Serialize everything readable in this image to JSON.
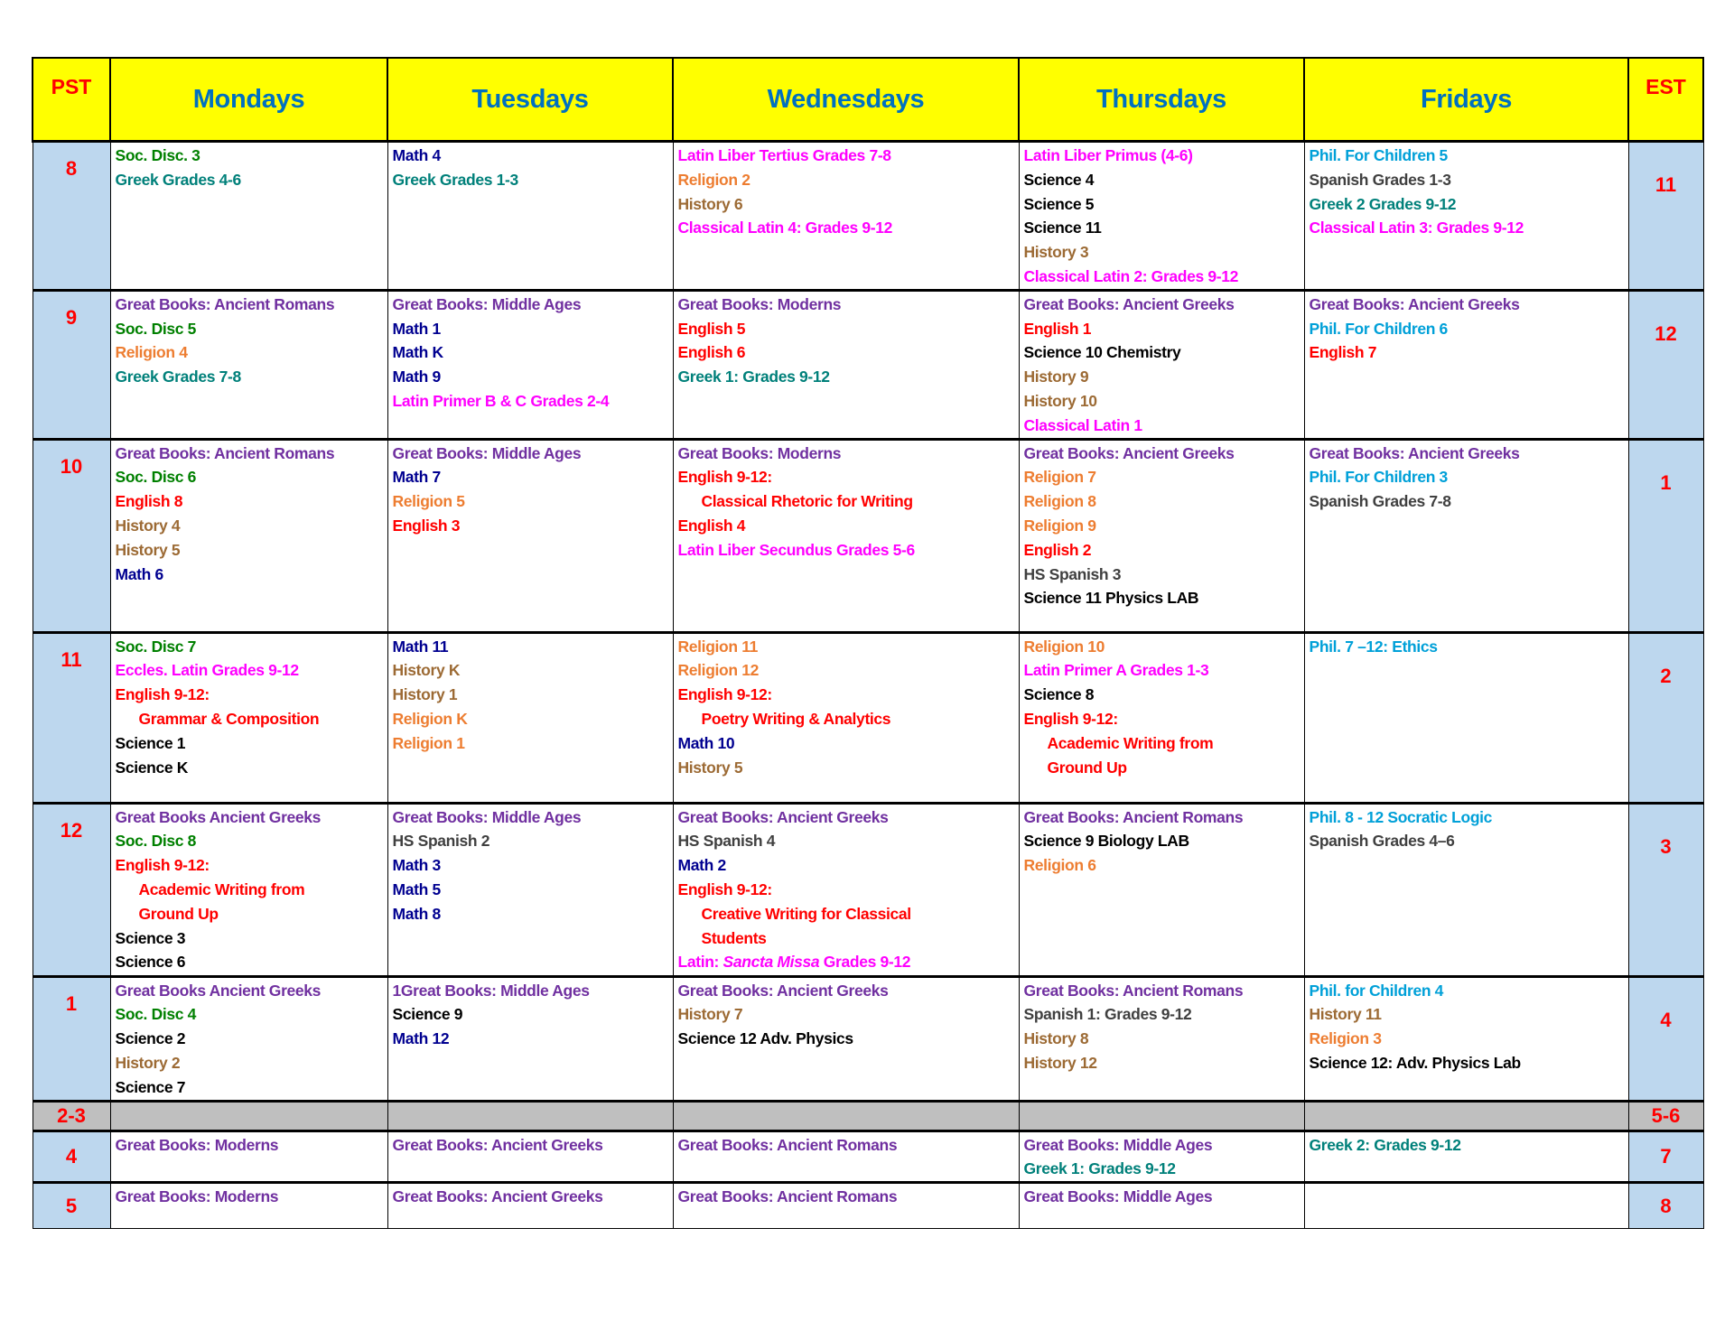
{
  "colors": {
    "header": "#0070c0",
    "time": "#ff0000",
    "time_bg": "#bdd7ee",
    "header_bg": "#ffff00",
    "break_bg": "#bfbfbf",
    "soc": "#008000",
    "greek": "#00807a",
    "math": "#000090",
    "books": "#7030a0",
    "religion": "#ed7d31",
    "history": "#9c6a34",
    "latin": "#ff00ff",
    "english": "#ff0000",
    "science": "#000000",
    "spanish": "#404040",
    "phil": "#00a0d8"
  },
  "header": {
    "pst": "PST",
    "est": "EST",
    "days": [
      "Mondays",
      "Tuesdays",
      "Wednesdays",
      "Thursdays",
      "Fridays"
    ]
  },
  "rows": [
    {
      "pst": "8",
      "est": "11",
      "cells": [
        [
          {
            "t": "Soc. Disc. 3",
            "c": "soc"
          },
          {
            "t": "Greek Grades 4-6",
            "c": "greek"
          }
        ],
        [
          {
            "t": "Math 4",
            "c": "math"
          },
          {
            "t": "Greek Grades 1-3",
            "c": "greek"
          }
        ],
        [
          {
            "t": "Latin Liber Tertius Grades 7-8",
            "c": "latin"
          },
          {
            "t": "Religion 2",
            "c": "religion"
          },
          {
            "t": "History 6",
            "c": "history"
          },
          {
            "t": "Classical Latin 4: Grades 9-12",
            "c": "latin"
          }
        ],
        [
          {
            "t": "Latin Liber Primus (4-6)",
            "c": "latin"
          },
          {
            "t": "Science 4",
            "c": "science"
          },
          {
            "t": "Science 5",
            "c": "science"
          },
          {
            "t": "Science 11",
            "c": "science"
          },
          {
            "t": "History 3",
            "c": "history"
          },
          {
            "t": "Classical Latin 2: Grades 9-12",
            "c": "latin"
          }
        ],
        [
          {
            "t": "Phil. For Children 5",
            "c": "phil"
          },
          {
            "t": "Spanish Grades 1-3",
            "c": "spanish"
          },
          {
            "t": "Greek 2 Grades 9-12",
            "c": "greek"
          },
          {
            "t": "Classical Latin 3: Grades 9-12",
            "c": "latin"
          }
        ]
      ]
    },
    {
      "pst": "9",
      "est": "12",
      "cells": [
        [
          {
            "t": "Great Books: Ancient Romans",
            "c": "books"
          },
          {
            "t": "Soc. Disc 5",
            "c": "soc"
          },
          {
            "t": "Religion 4",
            "c": "religion"
          },
          {
            "t": "Greek Grades 7-8",
            "c": "greek"
          }
        ],
        [
          {
            "t": "Great Books: Middle Ages",
            "c": "books"
          },
          {
            "t": "Math 1",
            "c": "math"
          },
          {
            "t": "Math K",
            "c": "math"
          },
          {
            "t": "Math 9",
            "c": "math"
          },
          {
            "t": "Latin Primer B & C Grades 2-4",
            "c": "latin"
          }
        ],
        [
          {
            "t": "Great Books: Moderns",
            "c": "books"
          },
          {
            "t": "English 5",
            "c": "english"
          },
          {
            "t": "English 6",
            "c": "english"
          },
          {
            "t": "Greek 1: Grades 9-12",
            "c": "greek"
          }
        ],
        [
          {
            "t": "Great Books: Ancient Greeks",
            "c": "books"
          },
          {
            "t": "English 1",
            "c": "english"
          },
          {
            "t": "Science 10 Chemistry",
            "c": "science"
          },
          {
            "t": "History 9",
            "c": "history"
          },
          {
            "t": "History 10",
            "c": "history"
          },
          {
            "t": "Classical Latin 1",
            "c": "latin"
          }
        ],
        [
          {
            "t": "Great Books: Ancient Greeks",
            "c": "books"
          },
          {
            "t": "Phil. For Children 6",
            "c": "phil"
          },
          {
            "t": "English 7",
            "c": "english"
          }
        ]
      ]
    },
    {
      "pst": "10",
      "est": "1",
      "cells": [
        [
          {
            "t": "Great Books: Ancient Romans",
            "c": "books"
          },
          {
            "t": "Soc. Disc 6",
            "c": "soc"
          },
          {
            "t": "English 8",
            "c": "english"
          },
          {
            "t": "History 4",
            "c": "history"
          },
          {
            "t": "History 5",
            "c": "history"
          },
          {
            "t": "Math 6",
            "c": "math"
          }
        ],
        [
          {
            "t": "Great Books: Middle Ages",
            "c": "books"
          },
          {
            "t": "Math 7",
            "c": "math"
          },
          {
            "t": "Religion 5",
            "c": "religion"
          },
          {
            "t": "English 3",
            "c": "english"
          }
        ],
        [
          {
            "t": "Great Books: Moderns",
            "c": "books"
          },
          {
            "t": "English 9-12:",
            "c": "english"
          },
          {
            "t": "Classical Rhetoric for Writing",
            "c": "english",
            "i": true
          },
          {
            "t": "English 4",
            "c": "english"
          },
          {
            "t": "Latin Liber Secundus Grades 5-6",
            "c": "latin"
          }
        ],
        [
          {
            "t": "Great Books: Ancient Greeks",
            "c": "books"
          },
          {
            "t": "Religion 7",
            "c": "religion"
          },
          {
            "t": "Religion 8",
            "c": "religion"
          },
          {
            "t": "Religion 9",
            "c": "religion"
          },
          {
            "t": "English 2",
            "c": "english"
          },
          {
            "t": "HS Spanish 3",
            "c": "spanish"
          },
          {
            "t": "Science 11 Physics  LAB",
            "c": "science"
          }
        ],
        [
          {
            "t": "Great Books: Ancient Greeks",
            "c": "books"
          },
          {
            "t": "Phil. For Children 3",
            "c": "phil"
          },
          {
            "t": "Spanish Grades 7-8",
            "c": "spanish"
          }
        ]
      ]
    },
    {
      "pst": "11",
      "est": "2",
      "cells": [
        [
          {
            "t": "Soc. Disc 7",
            "c": "soc"
          },
          {
            "t": "Eccles.  Latin Grades 9-12",
            "c": "latin"
          },
          {
            "t": "English 9-12:",
            "c": "english"
          },
          {
            "t": "Grammar & Composition",
            "c": "english",
            "i": true
          },
          {
            "t": "Science 1",
            "c": "science"
          },
          {
            "t": "Science K",
            "c": "science"
          }
        ],
        [
          {
            "t": "Math 11",
            "c": "math"
          },
          {
            "t": "History K",
            "c": "history"
          },
          {
            "t": "History 1",
            "c": "history"
          },
          {
            "t": "Religion K",
            "c": "religion"
          },
          {
            "t": "Religion 1",
            "c": "religion"
          }
        ],
        [
          {
            "t": "Religion 11",
            "c": "religion"
          },
          {
            "t": "Religion 12",
            "c": "religion"
          },
          {
            "t": "English 9-12:",
            "c": "english"
          },
          {
            "t": "Poetry Writing & Analytics",
            "c": "english",
            "i": true
          },
          {
            "t": "Math 10",
            "c": "math"
          },
          {
            "t": "History 5",
            "c": "history"
          }
        ],
        [
          {
            "t": "Religion 10",
            "c": "religion"
          },
          {
            "t": "Latin Primer A Grades 1-3",
            "c": "latin"
          },
          {
            "t": "Science 8",
            "c": "science"
          },
          {
            "t": "English 9-12:",
            "c": "english"
          },
          {
            "t": "Academic Writing from",
            "c": "english",
            "i": true
          },
          {
            "t": "Ground Up",
            "c": "english",
            "i": true
          }
        ],
        [
          {
            "t": "Phil. 7 –12: Ethics",
            "c": "phil"
          }
        ]
      ]
    },
    {
      "pst": "12",
      "est": "3",
      "cells": [
        [
          {
            "t": "Great Books Ancient Greeks",
            "c": "books"
          },
          {
            "t": "Soc. Disc 8",
            "c": "soc"
          },
          {
            "t": "English 9-12:",
            "c": "english"
          },
          {
            "t": "Academic Writing from",
            "c": "english",
            "i": true
          },
          {
            "t": "Ground Up",
            "c": "english",
            "i": true
          },
          {
            "t": "Science 3",
            "c": "science"
          },
          {
            "t": "Science 6",
            "c": "science"
          }
        ],
        [
          {
            "t": "Great Books: Middle Ages",
            "c": "books"
          },
          {
            "t": "HS Spanish 2",
            "c": "spanish"
          },
          {
            "t": "Math 3",
            "c": "math"
          },
          {
            "t": "Math 5",
            "c": "math"
          },
          {
            "t": "Math 8",
            "c": "math"
          }
        ],
        [
          {
            "t": "Great Books: Ancient Greeks",
            "c": "books"
          },
          {
            "t": "HS Spanish 4",
            "c": "spanish"
          },
          {
            "t": "Math 2",
            "c": "math"
          },
          {
            "t": "English 9-12:",
            "c": "english"
          },
          {
            "t": "Creative Writing for Classical",
            "c": "english",
            "i": true
          },
          {
            "t": "Students",
            "c": "english",
            "i": true
          },
          {
            "c": "latin",
            "parts": [
              {
                "t": "Latin: "
              },
              {
                "t": "Sancta Missa",
                "it": true
              },
              {
                "t": " Grades 9-12"
              }
            ]
          }
        ],
        [
          {
            "t": "Great Books: Ancient Romans",
            "c": "books"
          },
          {
            "t": "Science 9 Biology LAB",
            "c": "science"
          },
          {
            "t": "Religion 6",
            "c": "religion"
          }
        ],
        [
          {
            "t": "Phil.  8  - 12 Socratic Logic",
            "c": "phil"
          },
          {
            "t": "Spanish Grades 4–6",
            "c": "spanish"
          }
        ]
      ]
    },
    {
      "pst": "1",
      "est": "4",
      "cells": [
        [
          {
            "t": "Great Books Ancient Greeks",
            "c": "books"
          },
          {
            "t": "Soc. Disc 4",
            "c": "soc"
          },
          {
            "t": "Science 2",
            "c": "science"
          },
          {
            "t": "History 2",
            "c": "history"
          },
          {
            "t": "Science 7",
            "c": "science"
          }
        ],
        [
          {
            "t": "1Great Books: Middle Ages",
            "c": "books"
          },
          {
            "t": "Science 9",
            "c": "science"
          },
          {
            "t": "Math 12",
            "c": "math"
          }
        ],
        [
          {
            "t": "Great Books: Ancient Greeks",
            "c": "books"
          },
          {
            "t": "History 7",
            "c": "history"
          },
          {
            "t": "Science 12 Adv. Physics",
            "c": "science"
          }
        ],
        [
          {
            "t": "Great Books: Ancient Romans",
            "c": "books"
          },
          {
            "t": "Spanish 1: Grades 9-12",
            "c": "spanish"
          },
          {
            "t": "History 8",
            "c": "history"
          },
          {
            "t": "History 12",
            "c": "history"
          }
        ],
        [
          {
            "t": "Phil.  for Children 4",
            "c": "phil"
          },
          {
            "t": "History 11",
            "c": "history"
          },
          {
            "t": "Religion 3",
            "c": "religion"
          },
          {
            "t": "Science 12: Adv. Physics Lab",
            "c": "science"
          }
        ]
      ]
    },
    {
      "pst": "2-3",
      "est": "5-6",
      "break": true,
      "cells": [
        [],
        [],
        [],
        [],
        []
      ]
    },
    {
      "pst": "4",
      "est": "7",
      "short": true,
      "cells": [
        [
          {
            "t": "Great Books: Moderns",
            "c": "books"
          }
        ],
        [
          {
            "t": "Great Books: Ancient Greeks",
            "c": "books"
          }
        ],
        [
          {
            "t": "Great Books: Ancient Romans",
            "c": "books"
          }
        ],
        [
          {
            "t": "Great Books: Middle Ages",
            "c": "books"
          },
          {
            "t": "Greek 1: Grades 9-12",
            "c": "greek"
          }
        ],
        [
          {
            "t": "Greek 2: Grades 9-12",
            "c": "greek"
          }
        ]
      ]
    },
    {
      "pst": "5",
      "est": "8",
      "short": true,
      "cells": [
        [
          {
            "t": "Great Books: Moderns",
            "c": "books"
          }
        ],
        [
          {
            "t": "Great Books: Ancient Greeks",
            "c": "books"
          }
        ],
        [
          {
            "t": "Great Books: Ancient Romans",
            "c": "books"
          }
        ],
        [
          {
            "t": "Great Books: Middle Ages",
            "c": "books"
          }
        ],
        []
      ]
    }
  ]
}
